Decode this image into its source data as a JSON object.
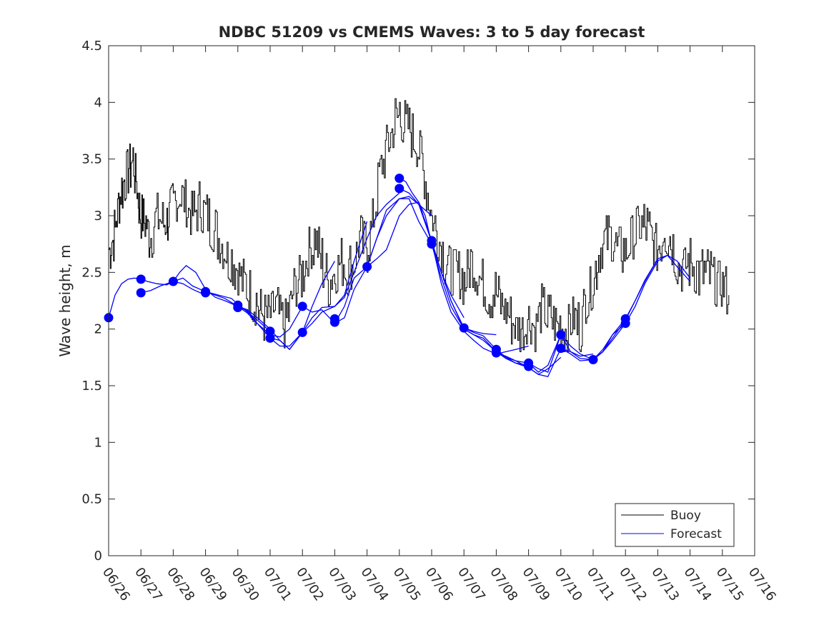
{
  "chart_data": {
    "type": "line",
    "title": "NDBC 51209 vs CMEMS Waves: 3 to 5 day forecast",
    "xlabel": "",
    "ylabel": "Wave height, m",
    "ylim": [
      0,
      4.5
    ],
    "xlim": [
      "06/26",
      "07/16"
    ],
    "x_ticks": [
      "06/26",
      "06/27",
      "06/28",
      "06/29",
      "06/30",
      "07/01",
      "07/02",
      "07/03",
      "07/04",
      "07/05",
      "07/06",
      "07/07",
      "07/08",
      "07/09",
      "07/10",
      "07/11",
      "07/12",
      "07/13",
      "07/14",
      "07/15",
      "07/16"
    ],
    "y_ticks": [
      "0",
      "0.5",
      "1",
      "1.5",
      "2",
      "2.5",
      "3",
      "3.5",
      "4",
      "4.5"
    ],
    "grid": false,
    "legend_position": "bottom-right",
    "colors": {
      "buoy": "#000000",
      "forecast": "#0000ff"
    },
    "series": [
      {
        "name": "Buoy",
        "x_day": [
          0.0,
          0.15,
          0.3,
          0.45,
          0.6,
          0.75,
          0.9,
          1.0,
          1.15,
          1.3,
          1.5,
          1.7,
          1.85,
          2.0,
          2.2,
          2.4,
          2.6,
          2.8,
          3.0,
          3.2,
          3.4,
          3.6,
          3.8,
          4.0,
          4.2,
          4.4,
          4.6,
          4.8,
          5.0,
          5.2,
          5.4,
          5.6,
          5.8,
          6.0,
          6.2,
          6.4,
          6.6,
          6.8,
          7.0,
          7.2,
          7.4,
          7.6,
          7.8,
          8.0,
          8.2,
          8.4,
          8.6,
          8.8,
          9.0,
          9.2,
          9.4,
          9.6,
          9.8,
          10.0,
          10.2,
          10.4,
          10.6,
          10.8,
          11.0,
          11.2,
          11.4,
          11.6,
          11.8,
          12.0,
          12.2,
          12.4,
          12.6,
          12.8,
          13.0,
          13.2,
          13.4,
          13.6,
          13.8,
          14.0,
          14.2,
          14.4,
          14.6,
          14.8,
          15.0,
          15.2,
          15.4,
          15.6,
          15.8,
          16.0,
          16.2,
          16.4,
          16.6,
          16.8,
          17.0,
          17.2,
          17.4,
          17.6,
          17.8,
          18.0,
          18.2,
          18.4,
          18.6,
          18.8,
          19.0,
          19.2
        ],
        "values": [
          2.7,
          2.8,
          3.1,
          3.3,
          3.4,
          3.5,
          3.2,
          3.0,
          2.9,
          2.8,
          3.0,
          2.9,
          3.0,
          3.1,
          3.2,
          3.1,
          3.0,
          3.1,
          3.0,
          2.9,
          2.8,
          2.7,
          2.6,
          2.5,
          2.4,
          2.3,
          2.2,
          2.1,
          2.1,
          2.2,
          2.0,
          2.2,
          2.4,
          2.5,
          2.7,
          2.8,
          2.6,
          2.4,
          2.5,
          2.6,
          2.5,
          2.6,
          2.8,
          2.7,
          3.0,
          3.4,
          3.6,
          3.8,
          3.9,
          3.8,
          3.7,
          3.6,
          3.3,
          3.0,
          2.8,
          2.6,
          2.5,
          2.5,
          2.4,
          2.6,
          2.5,
          2.4,
          2.3,
          2.3,
          2.2,
          2.1,
          2.0,
          2.0,
          2.1,
          2.0,
          2.2,
          2.1,
          2.1,
          2.0,
          2.0,
          2.1,
          2.0,
          2.3,
          2.4,
          2.7,
          2.8,
          2.8,
          2.7,
          2.7,
          2.8,
          2.9,
          2.9,
          2.8,
          2.7,
          2.9,
          2.8,
          2.6,
          2.5,
          2.6,
          2.5,
          2.5,
          2.5,
          2.4,
          2.4,
          2.3
        ]
      },
      {
        "name": "Forecast",
        "runs": [
          {
            "x_day": [
              0.0,
              0.2,
              0.4,
              0.6,
              0.8,
              1.0,
              1.2,
              1.5,
              1.8,
              2.0,
              2.3,
              2.6,
              3.0
            ],
            "values": [
              2.1,
              2.3,
              2.4,
              2.44,
              2.45,
              2.44,
              2.42,
              2.4,
              2.39,
              2.42,
              2.4,
              2.35,
              2.3
            ]
          },
          {
            "x_day": [
              1.0,
              1.3,
              1.6,
              2.0,
              2.3,
              2.6,
              3.0,
              3.4,
              3.8,
              4.0,
              4.3,
              4.6,
              5.0
            ],
            "values": [
              2.32,
              2.34,
              2.38,
              2.42,
              2.45,
              2.38,
              2.33,
              2.3,
              2.27,
              2.22,
              2.15,
              2.08,
              1.98
            ]
          },
          {
            "x_day": [
              2.0,
              2.2,
              2.4,
              2.7,
              3.0,
              3.3,
              3.6,
              4.0,
              4.3,
              4.6,
              5.0,
              5.3,
              5.6,
              6.0
            ],
            "values": [
              2.42,
              2.5,
              2.56,
              2.5,
              2.35,
              2.28,
              2.25,
              2.2,
              2.16,
              2.05,
              1.95,
              1.93,
              2.0,
              2.2
            ]
          },
          {
            "x_day": [
              3.0,
              3.3,
              3.6,
              4.0,
              4.3,
              4.6,
              5.0,
              5.3,
              5.6,
              6.0,
              6.3,
              6.6,
              7.0
            ],
            "values": [
              2.33,
              2.3,
              2.27,
              2.2,
              2.14,
              2.05,
              1.92,
              1.85,
              1.85,
              1.97,
              2.2,
              2.4,
              2.6
            ]
          },
          {
            "x_day": [
              4.0,
              4.3,
              4.6,
              5.0,
              5.3,
              5.6,
              6.0,
              6.3,
              6.6,
              7.0,
              7.3,
              7.6,
              8.0
            ],
            "values": [
              2.2,
              2.17,
              2.1,
              2.0,
              1.9,
              1.82,
              1.97,
              2.1,
              2.19,
              2.2,
              2.3,
              2.6,
              2.95
            ]
          },
          {
            "x_day": [
              5.0,
              5.3,
              5.6,
              6.0,
              6.3,
              6.6,
              7.0,
              7.3,
              7.6,
              8.0,
              8.3,
              8.6,
              9.0
            ],
            "values": [
              1.92,
              1.9,
              1.82,
              1.97,
              2.05,
              2.15,
              2.2,
              2.28,
              2.5,
              2.8,
              3.0,
              3.1,
              3.2
            ]
          },
          {
            "x_day": [
              6.0,
              6.3,
              6.6,
              7.0,
              7.3,
              7.6,
              8.0,
              8.3,
              8.6,
              9.0,
              9.3,
              9.6,
              10.0
            ],
            "values": [
              2.2,
              2.15,
              2.17,
              2.05,
              2.2,
              2.45,
              2.55,
              2.8,
              3.05,
              3.15,
              3.17,
              3.1,
              3.0
            ]
          },
          {
            "x_day": [
              7.0,
              7.3,
              7.6,
              8.0,
              8.3,
              8.6,
              9.0,
              9.3,
              9.6,
              10.0,
              10.3,
              10.6,
              11.0
            ],
            "values": [
              2.05,
              2.1,
              2.35,
              2.55,
              2.8,
              3.0,
              3.15,
              3.15,
              2.95,
              2.75,
              2.5,
              2.3,
              2.1
            ]
          },
          {
            "x_day": [
              8.0,
              8.3,
              8.6,
              9.0,
              9.3,
              9.6,
              10.0,
              10.3,
              10.6,
              11.0,
              11.3,
              11.6,
              12.0
            ],
            "values": [
              2.55,
              2.62,
              2.7,
              3.0,
              3.1,
              3.12,
              2.78,
              2.5,
              2.25,
              2.01,
              1.98,
              1.96,
              1.95
            ]
          },
          {
            "x_day": [
              9.0,
              9.2,
              9.4,
              9.6,
              9.8,
              10.0,
              10.3,
              10.6,
              11.0,
              11.3,
              11.6,
              12.0,
              12.3,
              12.6,
              13.0
            ],
            "values": [
              3.33,
              3.3,
              3.2,
              3.12,
              3.0,
              2.75,
              2.45,
              2.2,
              2.0,
              1.95,
              1.9,
              1.8,
              1.75,
              1.7,
              1.68
            ]
          },
          {
            "x_day": [
              9.0,
              9.3,
              9.6,
              10.0,
              10.3,
              10.6,
              11.0,
              11.3,
              11.6,
              12.0,
              12.3,
              12.6,
              13.0
            ],
            "values": [
              3.24,
              3.2,
              3.1,
              2.77,
              2.4,
              2.15,
              1.98,
              1.9,
              1.83,
              1.78,
              1.8,
              1.82,
              1.85
            ]
          },
          {
            "x_day": [
              10.0,
              10.3,
              10.6,
              11.0,
              11.3,
              11.6,
              12.0,
              12.3,
              12.6,
              13.0,
              13.3,
              13.6,
              14.0
            ],
            "values": [
              2.75,
              2.5,
              2.25,
              2.0,
              1.95,
              1.92,
              1.8,
              1.74,
              1.7,
              1.66,
              1.6,
              1.65,
              1.75
            ]
          },
          {
            "x_day": [
              11.0,
              11.3,
              11.6,
              12.0,
              12.3,
              12.6,
              13.0,
              13.3,
              13.6,
              14.0,
              14.3,
              14.6,
              15.0
            ],
            "values": [
              2.01,
              1.97,
              1.94,
              1.82,
              1.75,
              1.72,
              1.7,
              1.62,
              1.68,
              1.95,
              1.8,
              1.76,
              1.78
            ]
          },
          {
            "x_day": [
              12.0,
              12.3,
              12.6,
              13.0,
              13.3,
              13.6,
              14.0,
              14.3,
              14.6,
              15.0,
              15.3,
              15.6,
              16.0
            ],
            "values": [
              1.79,
              1.76,
              1.72,
              1.66,
              1.6,
              1.58,
              1.83,
              1.78,
              1.72,
              1.73,
              1.8,
              1.9,
              2.05
            ]
          },
          {
            "x_day": [
              13.0,
              13.3,
              13.6,
              14.0,
              14.3,
              14.6,
              15.0,
              15.3,
              15.6,
              16.0,
              16.3,
              16.6,
              17.0
            ],
            "values": [
              1.7,
              1.65,
              1.62,
              1.95,
              1.85,
              1.78,
              1.73,
              1.8,
              1.92,
              2.08,
              2.25,
              2.42,
              2.62
            ]
          },
          {
            "x_day": [
              14.0,
              14.3,
              14.6,
              15.0,
              15.3,
              15.6,
              16.0,
              16.3,
              16.6,
              17.0,
              17.3,
              17.6,
              18.0
            ],
            "values": [
              1.83,
              1.8,
              1.74,
              1.73,
              1.82,
              1.95,
              2.05,
              2.2,
              2.4,
              2.6,
              2.65,
              2.55,
              2.42
            ]
          },
          {
            "x_day": [
              15.0,
              15.3,
              15.6,
              16.0,
              16.3,
              16.6,
              17.0,
              17.3,
              17.6,
              18.0
            ],
            "values": [
              1.73,
              1.8,
              1.95,
              2.09,
              2.25,
              2.43,
              2.62,
              2.65,
              2.6,
              2.45
            ]
          }
        ],
        "markers": {
          "x_day": [
            0,
            1,
            1,
            2,
            3,
            3,
            4,
            4,
            5,
            5,
            6,
            6,
            7,
            7,
            8,
            9,
            9,
            10,
            10,
            11,
            12,
            12,
            13,
            13,
            14,
            14,
            15,
            16,
            16
          ],
          "values": [
            2.1,
            2.44,
            2.32,
            2.42,
            2.33,
            2.32,
            2.21,
            2.19,
            1.98,
            1.92,
            2.2,
            1.97,
            2.09,
            2.06,
            2.55,
            3.33,
            3.24,
            2.78,
            2.75,
            2.01,
            1.82,
            1.79,
            1.7,
            1.67,
            1.95,
            1.83,
            1.73,
            2.09,
            2.05
          ]
        }
      }
    ]
  }
}
